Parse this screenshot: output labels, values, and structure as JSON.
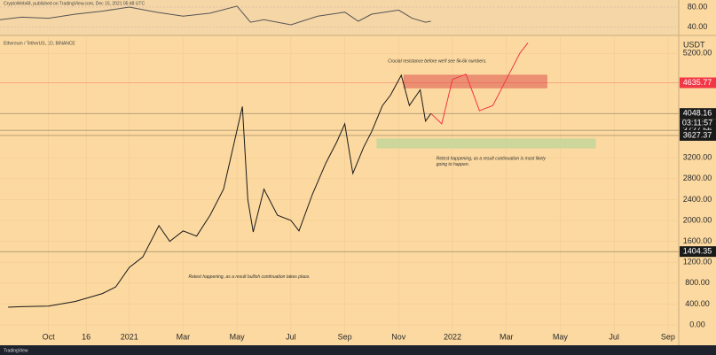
{
  "chart_data": {
    "type": "line",
    "header": "CryptoWeb48, published on TradingView.com, Dec 15, 2021 05:48 UTC",
    "symbol": "Ethereum / TetherUS, 1D, BINANCE",
    "currency": "USDT",
    "countdown": "03:11:57",
    "footer": "TradingView",
    "annotations": [
      {
        "text": "Crucial resistance before we'll see 5k-6k numbers.",
        "x": 13.6,
        "y": 5050
      },
      {
        "text": "Retest happening, as a result continuation is most likely",
        "x": 15.4,
        "y": 3180
      },
      {
        "text": "going to happen.",
        "x": 15.4,
        "y": 3070
      },
      {
        "text": "Retest happening, as a result bullish continuation takes place.",
        "x": 6.2,
        "y": 920
      }
    ],
    "x": [
      -0.5,
      0,
      1,
      2,
      3,
      3.5,
      4,
      4.5,
      5.1,
      5.5,
      6,
      6.5,
      7,
      7.5,
      8.2,
      8.4,
      8.6,
      9,
      9.5,
      10,
      10.3,
      10.8,
      11.3,
      11.7,
      12,
      12.3,
      12.7,
      13,
      13.4,
      13.7,
      14.1,
      14.4,
      14.8,
      15,
      15.2
    ],
    "series": [
      {
        "name": "ETHUSDT",
        "color": "#1a1a1a",
        "values": [
          340,
          350,
          360,
          450,
          600,
          730,
          1100,
          1300,
          1900,
          1600,
          1800,
          1700,
          2100,
          2600,
          4180,
          2400,
          1780,
          2600,
          2100,
          2000,
          1800,
          2500,
          3100,
          3500,
          3850,
          2900,
          3400,
          3700,
          4200,
          4400,
          4780,
          4200,
          4500,
          3900,
          4048.16
        ]
      }
    ],
    "projection": {
      "color": "#f23645",
      "x": [
        15.2,
        15.6,
        16,
        16.5,
        17,
        17.5,
        18,
        18.5,
        18.8
      ],
      "values": [
        4048.16,
        3850,
        4700,
        4800,
        4100,
        4200,
        4700,
        5200,
        5400
      ]
    },
    "zones": [
      {
        "x": [
          14.2,
          19.5
        ],
        "y": [
          4540,
          4780
        ],
        "color": "#e8836a"
      },
      {
        "x": [
          13.2,
          21.3
        ],
        "y": [
          3390,
          3560
        ],
        "color": "#c5d69a"
      }
    ],
    "levels": [
      {
        "value": 4635.77,
        "color": "#f23645"
      },
      {
        "value": 4048.16,
        "color": "#1a1a1a"
      },
      {
        "value": 3727.56,
        "color": "#1a1a1a"
      },
      {
        "value": 3627.37,
        "color": "#1a1a1a"
      },
      {
        "value": 1404.35,
        "color": "#1a1a1a"
      }
    ],
    "xlim": [
      -0.8,
      24.4
    ],
    "xticks": [
      {
        "value": 1,
        "label": "Oct"
      },
      {
        "value": 2.4,
        "label": "16"
      },
      {
        "value": 4,
        "label": "2021"
      },
      {
        "value": 6,
        "label": "Mar"
      },
      {
        "value": 8,
        "label": "May"
      },
      {
        "value": 10,
        "label": "Jul"
      },
      {
        "value": 12,
        "label": "Sep"
      },
      {
        "value": 14,
        "label": "Nov"
      },
      {
        "value": 16,
        "label": "2022"
      },
      {
        "value": 18,
        "label": "Mar"
      },
      {
        "value": 20,
        "label": "May"
      },
      {
        "value": 22,
        "label": "Jul"
      },
      {
        "value": 24,
        "label": "Sep"
      }
    ],
    "ylim": [
      -186,
      5458
    ],
    "yticks": [
      {
        "value": 0,
        "label": "0.00"
      },
      {
        "value": 400,
        "label": "400.00"
      },
      {
        "value": 800,
        "label": "800.00"
      },
      {
        "value": 1200,
        "label": "1200.00"
      },
      {
        "value": 1600,
        "label": "1600.00"
      },
      {
        "value": 2000,
        "label": "2000.00"
      },
      {
        "value": 2400,
        "label": "2400.00"
      },
      {
        "value": 2800,
        "label": "2800.00"
      },
      {
        "value": 3200,
        "label": "3200.00"
      },
      {
        "value": 5200,
        "label": "5200.00"
      }
    ],
    "rsi": {
      "color": "#555555",
      "x": [
        -0.8,
        0,
        1,
        2,
        3,
        4,
        5,
        6,
        7,
        8,
        8.5,
        9,
        10,
        11,
        12,
        12.5,
        13,
        14,
        14.5,
        15,
        15.2
      ],
      "values": [
        55,
        60,
        58,
        66,
        72,
        80,
        70,
        62,
        68,
        82,
        50,
        55,
        45,
        62,
        70,
        52,
        66,
        74,
        58,
        50,
        52
      ],
      "ylim": [
        24,
        94
      ],
      "yticks": [
        {
          "value": 80,
          "label": "80.00"
        },
        {
          "value": 40,
          "label": "40.00"
        }
      ]
    }
  }
}
